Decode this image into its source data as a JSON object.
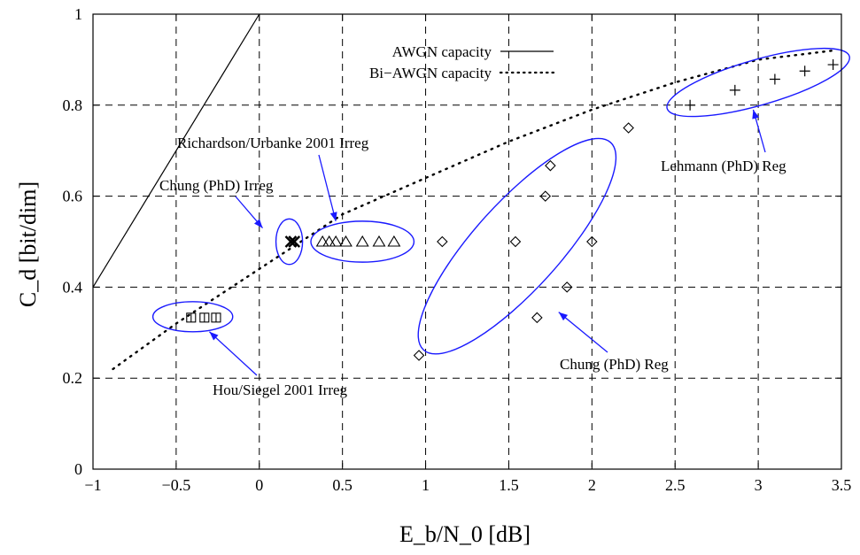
{
  "chart_data": {
    "type": "scatter",
    "xlabel": "E_b/N_0 [dB]",
    "ylabel": "C_d [bit/dim]",
    "xlim": [
      -1,
      3.5
    ],
    "ylim": [
      0,
      1
    ],
    "xticks": [
      "−1",
      "−0.5",
      "0",
      "0.5",
      "1",
      "1.5",
      "2",
      "2.5",
      "3",
      "3.5"
    ],
    "yticks": [
      "0",
      "0.2",
      "0.4",
      "0.6",
      "0.8",
      "1"
    ],
    "grid": true,
    "legend_position": "top-center",
    "legend": [
      {
        "label": "AWGN capacity",
        "style": "solid"
      },
      {
        "label": "Bi−AWGN capacity",
        "style": "dotted"
      }
    ],
    "curves": [
      {
        "name": "AWGN capacity",
        "style": "solid",
        "points": [
          [
            -1.0,
            0.4
          ],
          [
            0.0,
            1.0
          ]
        ]
      },
      {
        "name": "Bi−AWGN capacity",
        "style": "dotted",
        "points": [
          [
            -0.88,
            0.22
          ],
          [
            -0.5,
            0.32
          ],
          [
            0.0,
            0.44
          ],
          [
            0.5,
            0.56
          ],
          [
            1.0,
            0.64
          ],
          [
            1.5,
            0.72
          ],
          [
            2.0,
            0.79
          ],
          [
            2.5,
            0.85
          ],
          [
            3.0,
            0.9
          ],
          [
            3.45,
            0.92
          ]
        ]
      }
    ],
    "series": [
      {
        "marker": "square",
        "points": [
          [
            -0.41,
            0.333
          ],
          [
            -0.33,
            0.333
          ],
          [
            -0.26,
            0.333
          ]
        ]
      },
      {
        "marker": "x",
        "points": [
          [
            0.19,
            0.5
          ],
          [
            0.21,
            0.5
          ]
        ]
      },
      {
        "marker": "triangle",
        "points": [
          [
            0.38,
            0.5
          ],
          [
            0.42,
            0.5
          ],
          [
            0.46,
            0.5
          ],
          [
            0.52,
            0.5
          ],
          [
            0.62,
            0.5
          ],
          [
            0.72,
            0.5
          ],
          [
            0.81,
            0.5
          ]
        ]
      },
      {
        "marker": "diamond",
        "points": [
          [
            0.96,
            0.25
          ],
          [
            1.1,
            0.5
          ],
          [
            1.54,
            0.5
          ],
          [
            1.67,
            0.333
          ],
          [
            1.72,
            0.6
          ],
          [
            1.75,
            0.667
          ],
          [
            1.85,
            0.4
          ],
          [
            2.0,
            0.5
          ],
          [
            2.22,
            0.75
          ]
        ]
      },
      {
        "marker": "plus",
        "points": [
          [
            2.59,
            0.8
          ],
          [
            2.86,
            0.833
          ],
          [
            3.1,
            0.857
          ],
          [
            3.28,
            0.875
          ],
          [
            3.45,
            0.889
          ]
        ]
      }
    ],
    "ellipses": [
      {
        "cx": -0.4,
        "cy": 0.335,
        "rx": 0.24,
        "ry": 0.033,
        "angle": 0
      },
      {
        "cx": 0.18,
        "cy": 0.5,
        "rx": 0.08,
        "ry": 0.05,
        "angle": 0
      },
      {
        "cx": 0.62,
        "cy": 0.5,
        "rx": 0.31,
        "ry": 0.045,
        "angle": 0
      },
      {
        "cx": 1.55,
        "cy": 0.49,
        "rx": 0.84,
        "ry": 0.095,
        "angle": 48
      },
      {
        "cx": 3.0,
        "cy": 0.85,
        "rx": 0.57,
        "ry": 0.05,
        "angle": 16
      }
    ],
    "annotations": [
      {
        "text": "Hou/Siegel 2001 Irreg"
      },
      {
        "text": "Chung (PhD) Irreg"
      },
      {
        "text": "Richardson/Urbanke 2001 Irreg"
      },
      {
        "text": "Chung (PhD) Reg"
      },
      {
        "text": "Lehmann (PhD) Reg"
      }
    ]
  }
}
